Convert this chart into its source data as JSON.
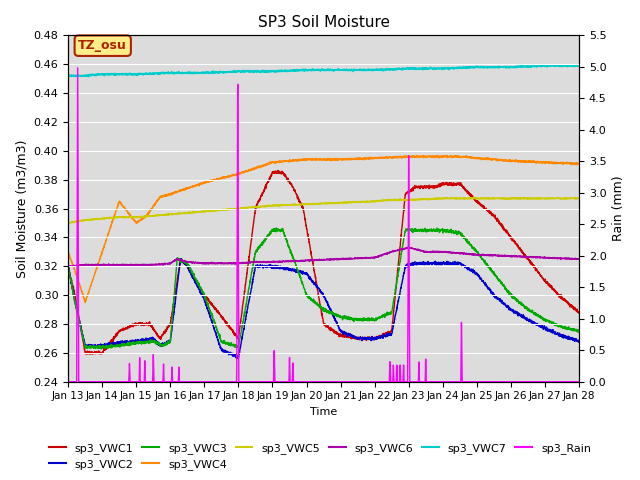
{
  "title": "SP3 Soil Moisture",
  "xlabel": "Time",
  "ylabel_left": "Soil Moisture (m3/m3)",
  "ylabel_right": "Rain (mm)",
  "xlim_days": [
    13,
    28
  ],
  "ylim_left": [
    0.24,
    0.48
  ],
  "ylim_right": [
    0.0,
    5.5
  ],
  "bg_color": "#dcdcdc",
  "annotation_text": "TZ_osu",
  "annotation_box_color": "#ffee88",
  "annotation_border_color": "#aa2200",
  "series_colors": {
    "sp3_VWC1": "#cc0000",
    "sp3_VWC2": "#0000cc",
    "sp3_VWC3": "#00aa00",
    "sp3_VWC4": "#ff8800",
    "sp3_VWC5": "#cccc00",
    "sp3_VWC6": "#aa00aa",
    "sp3_VWC7": "#00cccc",
    "sp3_Rain": "#ff00ff"
  },
  "x_tick_labels": [
    "Jan 13",
    "Jan 14",
    "Jan 15",
    "Jan 16",
    "Jan 17",
    "Jan 18",
    "Jan 19",
    "Jan 20",
    "Jan 21",
    "Jan 22",
    "Jan 23",
    "Jan 24",
    "Jan 25",
    "Jan 26",
    "Jan 27",
    "Jan 28"
  ],
  "x_tick_positions": [
    13,
    14,
    15,
    16,
    17,
    18,
    19,
    20,
    21,
    22,
    23,
    24,
    25,
    26,
    27,
    28
  ],
  "yticks_left": [
    0.24,
    0.26,
    0.28,
    0.3,
    0.32,
    0.34,
    0.36,
    0.38,
    0.4,
    0.42,
    0.44,
    0.46,
    0.48
  ],
  "yticks_right": [
    0.0,
    0.5,
    1.0,
    1.5,
    2.0,
    2.5,
    3.0,
    3.5,
    4.0,
    4.5,
    5.0,
    5.5
  ]
}
